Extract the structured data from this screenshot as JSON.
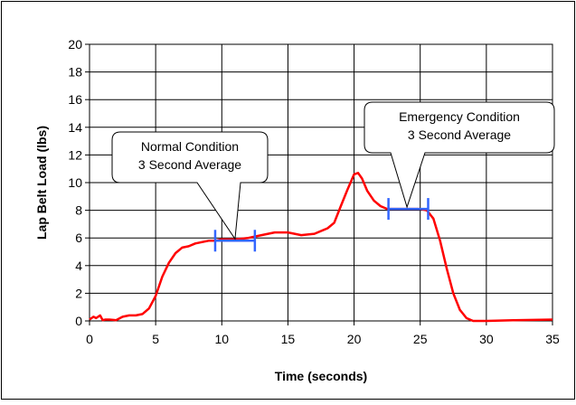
{
  "chart_data": {
    "type": "line",
    "title": "",
    "xlabel": "Time (seconds)",
    "ylabel": "Lap Belt Load (lbs)",
    "xlim": [
      0,
      35
    ],
    "ylim": [
      0,
      20
    ],
    "x_ticks": [
      0,
      5,
      10,
      15,
      20,
      25,
      30,
      35
    ],
    "y_ticks": [
      0,
      2,
      4,
      6,
      8,
      10,
      12,
      14,
      16,
      18,
      20
    ],
    "x_tick_labels": [
      "0",
      "5",
      "10",
      "15",
      "20",
      "25",
      "30",
      "35"
    ],
    "y_tick_labels": [
      "0",
      "2",
      "4",
      "6",
      "8",
      "10",
      "12",
      "14",
      "16",
      "18",
      "20"
    ],
    "grid": true,
    "legend": "none",
    "series_color": "#ff0000",
    "marker_color": "#3366ff",
    "series": [
      {
        "x": [
          0,
          0.3,
          0.5,
          0.8,
          1.0,
          1.2,
          1.5,
          2.0,
          2.5,
          3.0,
          3.5,
          4.0,
          4.5,
          5.0,
          5.5,
          6.0,
          6.5,
          7.0,
          7.5,
          8.0,
          8.5,
          9.0,
          9.5,
          10.0,
          11.0,
          12.0,
          13.0,
          14.0,
          15.0,
          16.0,
          17.0,
          18.0,
          18.5,
          19.0,
          19.5,
          20.0,
          20.3,
          20.6,
          21.0,
          21.5,
          22.0,
          22.5,
          23.0,
          24.0,
          25.0,
          25.5,
          26.0,
          26.5,
          27.0,
          27.5,
          28.0,
          28.5,
          29.0,
          30.0,
          32.0,
          35.0
        ],
        "y": [
          0.1,
          0.3,
          0.2,
          0.4,
          0.05,
          0.1,
          0.1,
          0.05,
          0.3,
          0.4,
          0.4,
          0.5,
          0.9,
          1.8,
          3.2,
          4.2,
          4.9,
          5.3,
          5.4,
          5.6,
          5.7,
          5.8,
          5.8,
          5.9,
          5.9,
          6.0,
          6.2,
          6.4,
          6.4,
          6.2,
          6.3,
          6.7,
          7.1,
          8.3,
          9.5,
          10.6,
          10.7,
          10.3,
          9.4,
          8.7,
          8.3,
          8.1,
          8.1,
          8.1,
          8.1,
          8.0,
          7.4,
          5.8,
          3.8,
          2.0,
          0.8,
          0.2,
          0.0,
          0.0,
          0.05,
          0.1
        ]
      }
    ],
    "averages": [
      {
        "x_start": 9.5,
        "x_end": 12.5,
        "value": 5.8
      },
      {
        "x_start": 22.6,
        "x_end": 25.6,
        "value": 8.1
      }
    ],
    "annotations": [
      {
        "lines": [
          "Normal Condition",
          "3 Second Average"
        ],
        "target": [
          11.0,
          5.8
        ]
      },
      {
        "lines": [
          "Emergency Condition",
          "3 Second Average"
        ],
        "target": [
          24.0,
          8.1
        ]
      }
    ]
  }
}
